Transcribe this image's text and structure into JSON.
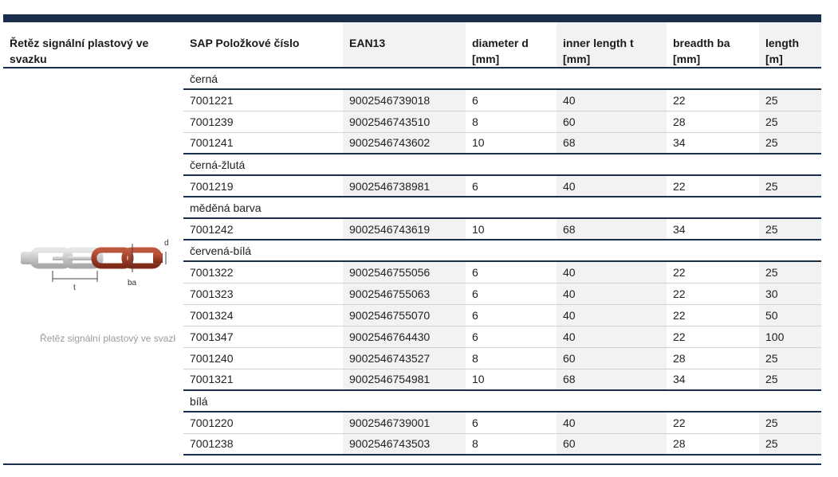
{
  "columns": [
    "Řetěz signální plastový ve svazku",
    "SAP Položkové číslo",
    "EAN13",
    "diameter d [mm]",
    "inner length t [mm]",
    "breadth ba [mm]",
    "length [m]"
  ],
  "image": {
    "caption": "Řetěz signální plastový ve svazku",
    "dim_d": "d",
    "dim_t": "t",
    "dim_ba": "ba",
    "colors": {
      "grey_link": "#c9c9c9",
      "red_link": "#a8402a"
    }
  },
  "groups": [
    {
      "name": "černá",
      "rows": [
        [
          "7001221",
          "9002546739018",
          "6",
          "40",
          "22",
          "25"
        ],
        [
          "7001239",
          "9002546743510",
          "8",
          "60",
          "28",
          "25"
        ],
        [
          "7001241",
          "9002546743602",
          "10",
          "68",
          "34",
          "25"
        ]
      ]
    },
    {
      "name": "černá-žlutá",
      "rows": [
        [
          "7001219",
          "9002546738981",
          "6",
          "40",
          "22",
          "25"
        ]
      ]
    },
    {
      "name": "měděná barva",
      "rows": [
        [
          "7001242",
          "9002546743619",
          "10",
          "68",
          "34",
          "25"
        ]
      ]
    },
    {
      "name": "červená-bílá",
      "rows": [
        [
          "7001322",
          "9002546755056",
          "6",
          "40",
          "22",
          "25"
        ],
        [
          "7001323",
          "9002546755063",
          "6",
          "40",
          "22",
          "30"
        ],
        [
          "7001324",
          "9002546755070",
          "6",
          "40",
          "22",
          "50"
        ],
        [
          "7001347",
          "9002546764430",
          "6",
          "40",
          "22",
          "100"
        ],
        [
          "7001240",
          "9002546743527",
          "8",
          "60",
          "28",
          "25"
        ],
        [
          "7001321",
          "9002546754981",
          "10",
          "68",
          "34",
          "25"
        ]
      ]
    },
    {
      "name": "bílá",
      "rows": [
        [
          "7001220",
          "9002546739001",
          "6",
          "40",
          "22",
          "25"
        ],
        [
          "7001238",
          "9002546743503",
          "8",
          "60",
          "28",
          "25"
        ]
      ]
    }
  ],
  "theme": {
    "header_rule": "#1a2d4a",
    "alt_column": "#f2f2f2"
  }
}
